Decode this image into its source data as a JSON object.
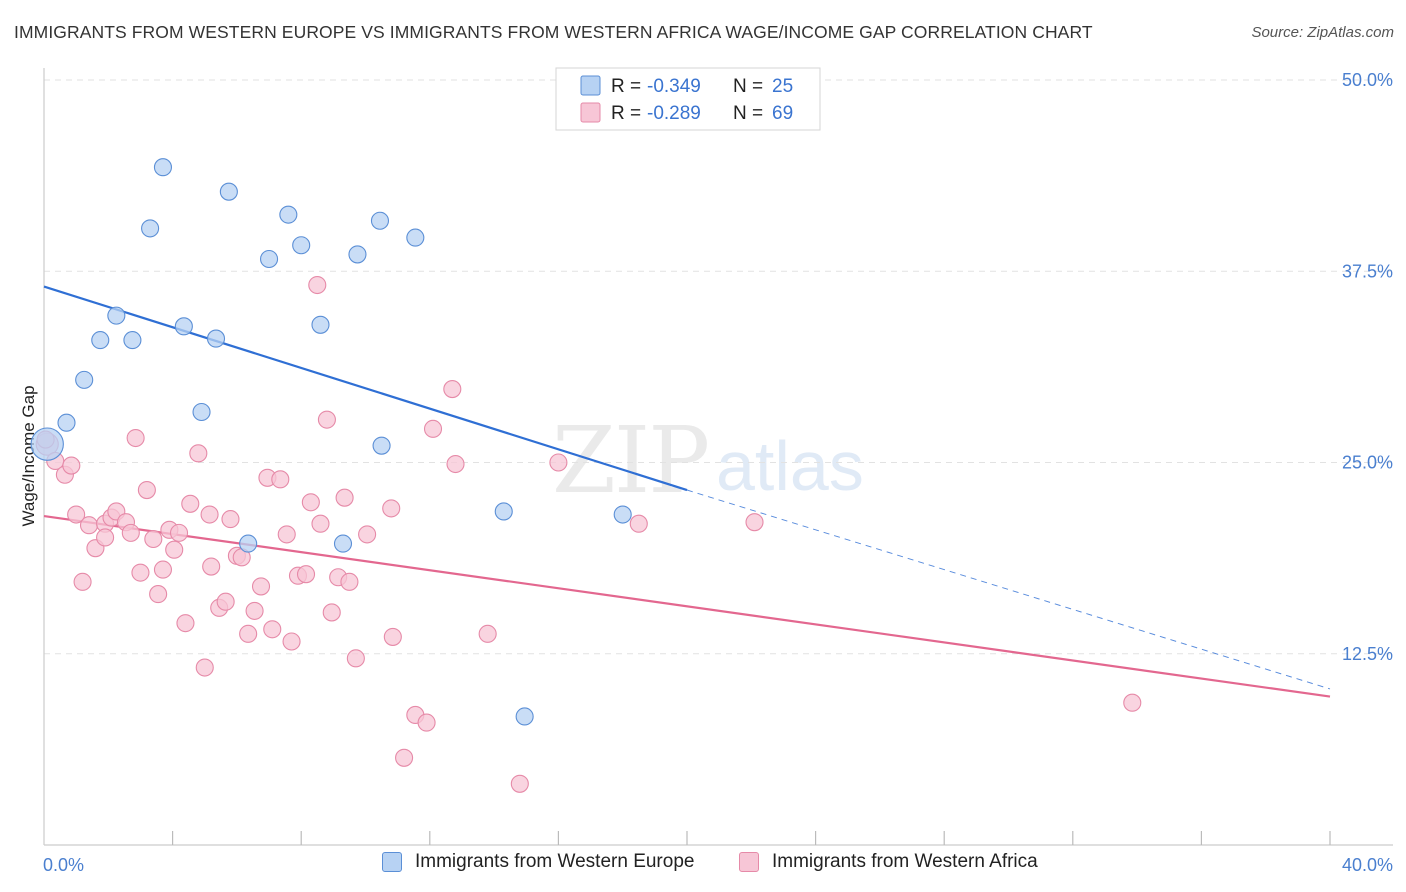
{
  "title": "IMMIGRANTS FROM WESTERN EUROPE VS IMMIGRANTS FROM WESTERN AFRICA WAGE/INCOME GAP CORRELATION CHART",
  "source": "Source: ZipAtlas.com",
  "watermark": {
    "zip": "ZIP",
    "atlas": "atlas"
  },
  "colors": {
    "blue_fill": "#b7d2f3",
    "blue_stroke": "#5b8fd6",
    "blue_line": "#2f6fd4",
    "pink_fill": "#f7c6d6",
    "pink_stroke": "#e68aa8",
    "pink_line": "#e3678f",
    "axis_text": "#4a7fcf",
    "grid": "#e2e2e2"
  },
  "legend_top": [
    {
      "r_label": "R =",
      "r_value": "-0.349",
      "n_label": "N =",
      "n_value": "25"
    },
    {
      "r_label": "R =",
      "r_value": "-0.289",
      "n_label": "N =",
      "n_value": "69"
    }
  ],
  "legend_bottom": [
    "Immigrants from Western Europe",
    "Immigrants from Western Africa"
  ],
  "chart_data": {
    "type": "scatter",
    "title": "IMMIGRANTS FROM WESTERN EUROPE VS IMMIGRANTS FROM WESTERN AFRICA WAGE/INCOME GAP CORRELATION CHART",
    "xlabel": "",
    "ylabel": "Wage/Income Gap",
    "xlim": [
      0,
      40
    ],
    "ylim": [
      0,
      50
    ],
    "x_tick_labels": [
      "0.0%",
      "40.0%"
    ],
    "y_tick_labels": [
      "12.5%",
      "25.0%",
      "37.5%",
      "50.0%"
    ],
    "y_ticks": [
      12.5,
      25.0,
      37.5,
      50.0
    ],
    "grid": true,
    "legend_position": "top-center",
    "series": [
      {
        "name": "Immigrants from Western Europe",
        "r": -0.349,
        "n": 25,
        "trend": {
          "x0": 0,
          "y0": 36.5,
          "x1": 20,
          "y1": 23.2,
          "dashed_to_x": 40,
          "dashed_to_y": 10.2
        },
        "points": [
          [
            0.1,
            26.2,
            1.9
          ],
          [
            0.7,
            27.6,
            1.0
          ],
          [
            1.25,
            30.4,
            1.0
          ],
          [
            1.75,
            33.0,
            1.0
          ],
          [
            2.25,
            34.6,
            1.0
          ],
          [
            2.75,
            33.0,
            1.0
          ],
          [
            3.3,
            40.3,
            1.0
          ],
          [
            3.7,
            44.3,
            1.0
          ],
          [
            4.35,
            33.9,
            1.0
          ],
          [
            4.9,
            28.3,
            1.0
          ],
          [
            5.35,
            33.1,
            1.0
          ],
          [
            5.75,
            42.7,
            1.0
          ],
          [
            6.35,
            19.7,
            1.0
          ],
          [
            7.0,
            38.3,
            1.0
          ],
          [
            7.6,
            41.2,
            1.0
          ],
          [
            8.0,
            39.2,
            1.0
          ],
          [
            8.6,
            34.0,
            1.0
          ],
          [
            9.3,
            19.7,
            1.0
          ],
          [
            9.75,
            38.6,
            1.0
          ],
          [
            10.45,
            40.8,
            1.0
          ],
          [
            10.5,
            26.1,
            1.0
          ],
          [
            11.55,
            39.7,
            1.0
          ],
          [
            14.3,
            21.8,
            1.0
          ],
          [
            14.95,
            8.4,
            1.0
          ],
          [
            18.0,
            21.6,
            1.0
          ]
        ]
      },
      {
        "name": "Immigrants from Western Africa",
        "r": -0.289,
        "n": 69,
        "trend": {
          "x0": 0,
          "y0": 21.5,
          "x1": 40,
          "y1": 9.7
        },
        "points": [
          [
            0.1,
            26.2,
            1.3
          ],
          [
            0.35,
            25.1,
            1.0
          ],
          [
            0.65,
            24.2,
            1.0
          ],
          [
            0.85,
            24.8,
            1.0
          ],
          [
            1.0,
            21.6,
            1.0
          ],
          [
            1.2,
            17.2,
            1.0
          ],
          [
            1.4,
            20.9,
            1.0
          ],
          [
            1.6,
            19.4,
            1.0
          ],
          [
            1.9,
            21.0,
            1.0
          ],
          [
            1.9,
            20.1,
            1.0
          ],
          [
            2.1,
            21.4,
            1.0
          ],
          [
            2.25,
            21.8,
            1.0
          ],
          [
            2.55,
            21.1,
            1.0
          ],
          [
            2.7,
            20.4,
            1.0
          ],
          [
            2.85,
            26.6,
            1.0
          ],
          [
            3.0,
            17.8,
            1.0
          ],
          [
            3.2,
            23.2,
            1.0
          ],
          [
            3.4,
            20.0,
            1.0
          ],
          [
            3.55,
            16.4,
            1.0
          ],
          [
            3.7,
            18.0,
            1.0
          ],
          [
            3.9,
            20.6,
            1.0
          ],
          [
            4.05,
            19.3,
            1.0
          ],
          [
            4.2,
            20.4,
            1.0
          ],
          [
            4.4,
            14.5,
            1.0
          ],
          [
            4.55,
            22.3,
            1.0
          ],
          [
            4.8,
            25.6,
            1.0
          ],
          [
            5.0,
            11.6,
            1.0
          ],
          [
            5.15,
            21.6,
            1.0
          ],
          [
            5.2,
            18.2,
            1.0
          ],
          [
            5.45,
            15.5,
            1.0
          ],
          [
            5.65,
            15.9,
            1.0
          ],
          [
            5.8,
            21.3,
            1.0
          ],
          [
            6.0,
            18.9,
            1.0
          ],
          [
            6.15,
            18.8,
            1.0
          ],
          [
            6.35,
            13.8,
            1.0
          ],
          [
            6.55,
            15.3,
            1.0
          ],
          [
            6.75,
            16.9,
            1.0
          ],
          [
            6.95,
            24.0,
            1.0
          ],
          [
            7.1,
            14.1,
            1.0
          ],
          [
            7.35,
            23.9,
            1.0
          ],
          [
            7.55,
            20.3,
            1.0
          ],
          [
            7.7,
            13.3,
            1.0
          ],
          [
            7.9,
            17.6,
            1.0
          ],
          [
            8.15,
            17.7,
            1.0
          ],
          [
            8.3,
            22.4,
            1.0
          ],
          [
            8.5,
            36.6,
            1.0
          ],
          [
            8.6,
            21.0,
            1.0
          ],
          [
            8.8,
            27.8,
            1.0
          ],
          [
            8.95,
            15.2,
            1.0
          ],
          [
            9.15,
            17.5,
            1.0
          ],
          [
            9.35,
            22.7,
            1.0
          ],
          [
            9.5,
            17.2,
            1.0
          ],
          [
            9.7,
            12.2,
            1.0
          ],
          [
            10.05,
            20.3,
            1.0
          ],
          [
            10.8,
            22.0,
            1.0
          ],
          [
            10.85,
            13.6,
            1.0
          ],
          [
            11.2,
            5.7,
            1.0
          ],
          [
            11.55,
            8.5,
            1.0
          ],
          [
            11.9,
            8.0,
            1.0
          ],
          [
            12.1,
            27.2,
            1.0
          ],
          [
            12.7,
            29.8,
            1.0
          ],
          [
            12.8,
            24.9,
            1.0
          ],
          [
            13.8,
            13.8,
            1.0
          ],
          [
            14.8,
            4.0,
            1.0
          ],
          [
            16.0,
            25.0,
            1.0
          ],
          [
            18.5,
            21.0,
            1.0
          ],
          [
            22.1,
            21.1,
            1.0
          ],
          [
            33.85,
            9.3,
            1.0
          ],
          [
            0.05,
            26.5,
            1.0
          ]
        ]
      }
    ]
  }
}
